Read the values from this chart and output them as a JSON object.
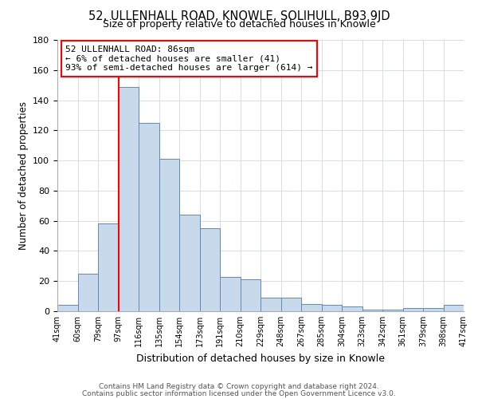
{
  "title": "52, ULLENHALL ROAD, KNOWLE, SOLIHULL, B93 9JD",
  "subtitle": "Size of property relative to detached houses in Knowle",
  "xlabel": "Distribution of detached houses by size in Knowle",
  "ylabel": "Number of detached properties",
  "bin_labels": [
    "41sqm",
    "60sqm",
    "79sqm",
    "97sqm",
    "116sqm",
    "135sqm",
    "154sqm",
    "173sqm",
    "191sqm",
    "210sqm",
    "229sqm",
    "248sqm",
    "267sqm",
    "285sqm",
    "304sqm",
    "323sqm",
    "342sqm",
    "361sqm",
    "379sqm",
    "398sqm",
    "417sqm"
  ],
  "bar_heights": [
    4,
    25,
    58,
    149,
    125,
    101,
    64,
    55,
    23,
    21,
    9,
    9,
    5,
    4,
    3,
    1,
    1,
    2,
    2,
    4
  ],
  "bar_color": "#c9d9ec",
  "bar_edge_color": "#5b8db8",
  "vline_color": "red",
  "annotation_line1": "52 ULLENHALL ROAD: 86sqm",
  "annotation_line2": "← 6% of detached houses are smaller (41)",
  "annotation_line3": "93% of semi-detached houses are larger (614) →",
  "ylim": [
    0,
    180
  ],
  "yticks": [
    0,
    20,
    40,
    60,
    80,
    100,
    120,
    140,
    160,
    180
  ],
  "footer_line1": "Contains HM Land Registry data © Crown copyright and database right 2024.",
  "footer_line2": "Contains public sector information licensed under the Open Government Licence v3.0.",
  "bg_color": "#ffffff",
  "grid_color": "#d0d8e8",
  "title_fontsize": 10.5,
  "subtitle_fontsize": 9
}
